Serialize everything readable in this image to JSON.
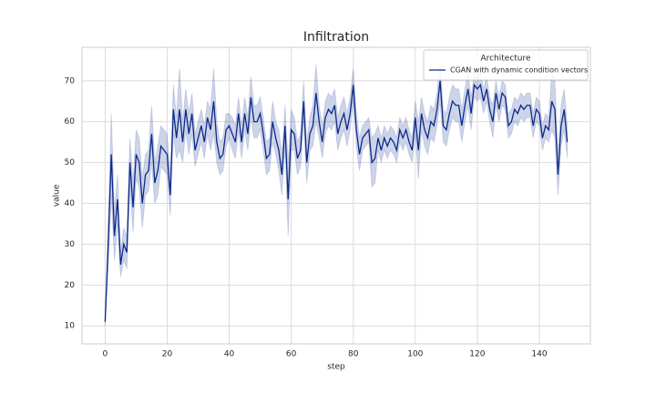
{
  "chart_data": {
    "type": "line",
    "title": "Infiltration",
    "x_label": "step",
    "y_label": "value",
    "legend_title": "Architecture",
    "legend_position": "upper right",
    "grid": true,
    "xlim": [
      -7.45,
      156.45
    ],
    "xticks": [
      0,
      20,
      40,
      60,
      80,
      100,
      120,
      140
    ],
    "ylim": [
      5.6,
      78.2
    ],
    "yticks": [
      10,
      20,
      30,
      40,
      50,
      60,
      70
    ],
    "x": [
      0,
      1,
      2,
      3,
      4,
      5,
      6,
      7,
      8,
      9,
      10,
      11,
      12,
      13,
      14,
      15,
      16,
      17,
      18,
      19,
      20,
      21,
      22,
      23,
      24,
      25,
      26,
      27,
      28,
      29,
      30,
      31,
      32,
      33,
      34,
      35,
      36,
      37,
      38,
      39,
      40,
      41,
      42,
      43,
      44,
      45,
      46,
      47,
      48,
      49,
      50,
      51,
      52,
      53,
      54,
      55,
      56,
      57,
      58,
      59,
      60,
      61,
      62,
      63,
      64,
      65,
      66,
      67,
      68,
      69,
      70,
      71,
      72,
      73,
      74,
      75,
      76,
      77,
      78,
      79,
      80,
      81,
      82,
      83,
      84,
      85,
      86,
      87,
      88,
      89,
      90,
      91,
      92,
      93,
      94,
      95,
      96,
      97,
      98,
      99,
      100,
      101,
      102,
      103,
      104,
      105,
      106,
      107,
      108,
      109,
      110,
      111,
      112,
      113,
      114,
      115,
      116,
      117,
      118,
      119,
      120,
      121,
      122,
      123,
      124,
      125,
      126,
      127,
      128,
      129,
      130,
      131,
      132,
      133,
      134,
      135,
      136,
      137,
      138,
      139,
      140,
      141,
      142,
      143,
      144,
      145,
      146,
      147,
      148,
      149
    ],
    "series": [
      {
        "name": "CGAN with dynamic condition vectors",
        "color": "#0b2a8a",
        "values": [
          11,
          30,
          52,
          32,
          41,
          25,
          30,
          28,
          50,
          39,
          52,
          50,
          40,
          47,
          48,
          57,
          45,
          48,
          54,
          53,
          52,
          42,
          63,
          56,
          63,
          55,
          63,
          57,
          62,
          53,
          56,
          59,
          55,
          61,
          58,
          65,
          55,
          51,
          52,
          58,
          59,
          57,
          55,
          62,
          55,
          62,
          57,
          66,
          60,
          60,
          62,
          57,
          51,
          52,
          60,
          56,
          53,
          47,
          59,
          41,
          58,
          57,
          51,
          53,
          65,
          50,
          57,
          59,
          67,
          60,
          55,
          61,
          63,
          62,
          64,
          57,
          60,
          62,
          58,
          62,
          69,
          58,
          52,
          56,
          57,
          58,
          50,
          51,
          56,
          53,
          56,
          54,
          56,
          55,
          53,
          58,
          56,
          58,
          55,
          53,
          61,
          53,
          62,
          58,
          56,
          60,
          59,
          63,
          70,
          59,
          58,
          62,
          65,
          64,
          64,
          59,
          64,
          68,
          62,
          69,
          68,
          69,
          65,
          68,
          63,
          60,
          67,
          63,
          67,
          66,
          59,
          60,
          63,
          62,
          64,
          63,
          64,
          64,
          59,
          63,
          62,
          56,
          59,
          58,
          65,
          63,
          47,
          59,
          63,
          55
        ],
        "lower": [
          10,
          24,
          42,
          26,
          35,
          22,
          26,
          24,
          44,
          33,
          46,
          44,
          34,
          42,
          43,
          50,
          40,
          42,
          49,
          48,
          47,
          37,
          57,
          51,
          53,
          50,
          58,
          52,
          57,
          49,
          52,
          55,
          51,
          57,
          53,
          57,
          50,
          47,
          48,
          54,
          56,
          53,
          51,
          58,
          51,
          58,
          53,
          61,
          56,
          56,
          58,
          53,
          47,
          48,
          55,
          52,
          48,
          42,
          54,
          32,
          53,
          53,
          47,
          49,
          60,
          45,
          53,
          54,
          60,
          56,
          51,
          57,
          59,
          58,
          60,
          53,
          56,
          58,
          54,
          58,
          65,
          54,
          48,
          53,
          54,
          55,
          44,
          45,
          53,
          50,
          53,
          51,
          53,
          52,
          50,
          55,
          53,
          55,
          52,
          50,
          57,
          46,
          58,
          54,
          52,
          56,
          55,
          59,
          65,
          55,
          54,
          58,
          61,
          60,
          60,
          55,
          60,
          64,
          58,
          66,
          65,
          66,
          62,
          65,
          60,
          56,
          64,
          60,
          64,
          63,
          56,
          57,
          60,
          59,
          61,
          60,
          61,
          61,
          56,
          60,
          59,
          53,
          56,
          55,
          58,
          56,
          42,
          54,
          58,
          51
        ],
        "upper": [
          12,
          36,
          62,
          38,
          47,
          28,
          34,
          32,
          56,
          45,
          58,
          56,
          46,
          52,
          53,
          64,
          50,
          54,
          59,
          58,
          57,
          47,
          69,
          61,
          73,
          60,
          68,
          62,
          67,
          57,
          60,
          63,
          59,
          65,
          63,
          73,
          60,
          55,
          56,
          62,
          62,
          61,
          59,
          66,
          59,
          66,
          61,
          71,
          64,
          64,
          66,
          61,
          55,
          56,
          65,
          60,
          58,
          52,
          64,
          50,
          63,
          61,
          55,
          57,
          70,
          55,
          61,
          64,
          74,
          64,
          59,
          65,
          67,
          66,
          68,
          61,
          64,
          66,
          62,
          66,
          73,
          62,
          56,
          59,
          60,
          61,
          56,
          57,
          59,
          56,
          59,
          57,
          59,
          58,
          56,
          61,
          59,
          61,
          58,
          56,
          65,
          60,
          66,
          62,
          60,
          64,
          63,
          67,
          75,
          63,
          62,
          66,
          69,
          68,
          68,
          63,
          68,
          72,
          66,
          72,
          71,
          72,
          68,
          71,
          66,
          64,
          70,
          66,
          70,
          69,
          62,
          63,
          66,
          65,
          67,
          66,
          67,
          67,
          62,
          66,
          65,
          59,
          62,
          61,
          72,
          70,
          52,
          64,
          68,
          59
        ]
      }
    ]
  }
}
